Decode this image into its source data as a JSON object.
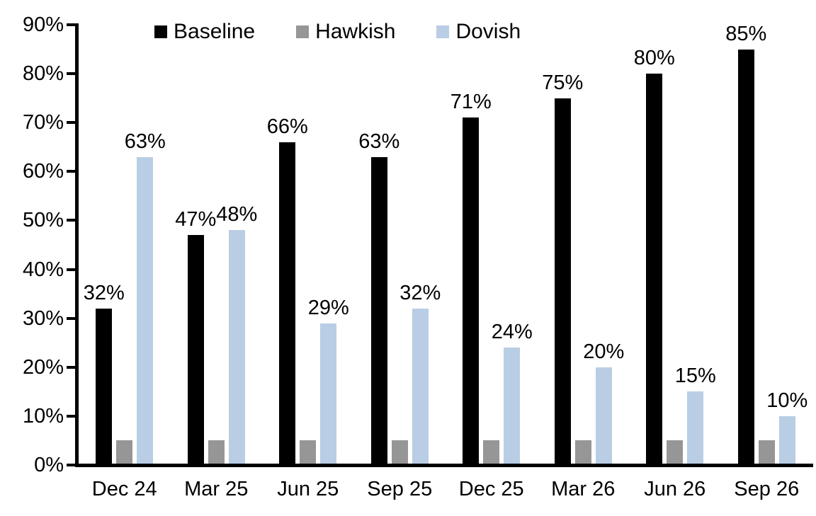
{
  "chart_data": {
    "type": "bar",
    "title": "",
    "xlabel": "",
    "ylabel": "",
    "categories": [
      "Dec 24",
      "Mar 25",
      "Jun 25",
      "Sep 25",
      "Dec 25",
      "Mar 26",
      "Jun 26",
      "Sep 26"
    ],
    "series": [
      {
        "name": "Baseline",
        "color": "#000000",
        "data_labels": true,
        "values": [
          32,
          47,
          66,
          63,
          71,
          75,
          80,
          85
        ]
      },
      {
        "name": "Hawkish",
        "color": "#969696",
        "data_labels": false,
        "values": [
          5,
          5,
          5,
          5,
          5,
          5,
          5,
          5
        ]
      },
      {
        "name": "Dovish",
        "color": "#B9CDE5",
        "data_labels": true,
        "values": [
          63,
          48,
          29,
          32,
          24,
          20,
          15,
          10
        ]
      }
    ],
    "ylim": [
      0,
      90
    ],
    "ytick_step": 10,
    "ytick_labels": [
      "0%",
      "10%",
      "20%",
      "30%",
      "40%",
      "50%",
      "60%",
      "70%",
      "80%",
      "90%"
    ],
    "value_suffix": "%",
    "legend_position": "top",
    "grid": false,
    "axis_color": "#000000",
    "background_color": "#FFFFFF"
  }
}
